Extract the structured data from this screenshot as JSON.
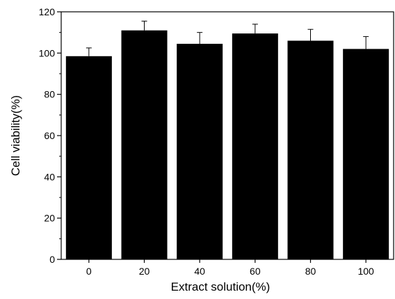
{
  "chart_data": {
    "type": "bar",
    "xlabel": "Extract solution(%)",
    "ylabel": "Cell viability(%)",
    "categories": [
      "0",
      "20",
      "40",
      "60",
      "80",
      "100"
    ],
    "values": [
      98.5,
      111,
      104.5,
      109.5,
      106,
      102
    ],
    "errors": [
      4,
      4.5,
      5.5,
      4.5,
      5.5,
      6
    ],
    "ylim": [
      0,
      120
    ],
    "yticks": [
      "0",
      "20",
      "40",
      "60",
      "80",
      "100",
      "120"
    ],
    "bar_color": "#000000",
    "grid": false,
    "legend": "none"
  }
}
